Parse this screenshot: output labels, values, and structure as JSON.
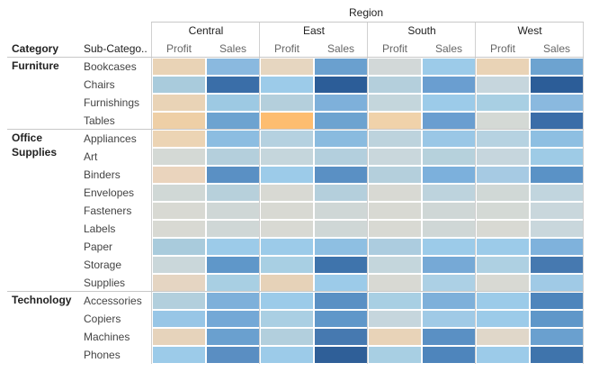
{
  "chart_data": {
    "type": "heatmap",
    "title": "Region",
    "row_headers": [
      "Category",
      "Sub-Catego.."
    ],
    "regions": [
      "Central",
      "East",
      "South",
      "West"
    ],
    "measures": [
      "Profit",
      "Sales"
    ],
    "categories": [
      {
        "name": "Furniture",
        "subcategories": [
          "Bookcases",
          "Chairs",
          "Furnishings",
          "Tables"
        ]
      },
      {
        "name": "Office\nSupplies",
        "subcategories": [
          "Appliances",
          "Art",
          "Binders",
          "Envelopes",
          "Fasteners",
          "Labels",
          "Paper",
          "Storage",
          "Supplies"
        ]
      },
      {
        "name": "Technology",
        "subcategories": [
          "Accessories",
          "Copiers",
          "Machines",
          "Phones"
        ]
      }
    ],
    "cell_colors": [
      [
        "#e9d3b6",
        "#8ab9df",
        "#e6d6c0",
        "#6aa0cf",
        "#d2d8d8",
        "#9ccbe9",
        "#e9d3b6",
        "#6da3d0"
      ],
      [
        "#a9cbdc",
        "#3a6ea8",
        "#9ccbe9",
        "#2c5d98",
        "#b4cfdc",
        "#6a9ed0",
        "#c6d6dd",
        "#2c5d98"
      ],
      [
        "#e9d3b6",
        "#9dc9e3",
        "#b4cfdc",
        "#7eb0da",
        "#c4d6dc",
        "#9ccbe9",
        "#a8cfe3",
        "#8ab9df"
      ],
      [
        "#eecfa6",
        "#6da3d0",
        "#fdbd70",
        "#6da3d0",
        "#f0d2aa",
        "#6a9ed0",
        "#d4d9d5",
        "#3b6da8"
      ],
      [
        "#ecd4b4",
        "#8cbde1",
        "#b5d1e0",
        "#8abbdf",
        "#bdd3dd",
        "#9ac7e6",
        "#b6d2e1",
        "#8ebfe2"
      ],
      [
        "#d4d9d5",
        "#b4cfdc",
        "#c5d6dc",
        "#b3cfdd",
        "#c9d7dc",
        "#b6d1dc",
        "#c6d6dd",
        "#9ecbe6"
      ],
      [
        "#ead4bd",
        "#5a90c4",
        "#9ccbe9",
        "#5a90c4",
        "#b4cfdc",
        "#7cb0dc",
        "#a6cae3",
        "#5a92c6"
      ],
      [
        "#d0d8d6",
        "#b7d0db",
        "#d8d9d3",
        "#b4cfdc",
        "#d8d9d3",
        "#bdd3dd",
        "#d0d8d6",
        "#c1d5de"
      ],
      [
        "#d8d9d3",
        "#cfd7d6",
        "#d8d9d3",
        "#cfd7d6",
        "#d8d9d3",
        "#cfd7d6",
        "#d4d9d5",
        "#c9d7dc"
      ],
      [
        "#d8d9d3",
        "#cfd7d6",
        "#d8d9d3",
        "#cfd7d6",
        "#d8d9d3",
        "#cfd7d6",
        "#d8d9d3",
        "#c9d7dc"
      ],
      [
        "#a9cbdc",
        "#9ccbe9",
        "#9ccbe9",
        "#8ebfe2",
        "#acccdf",
        "#9ccbe9",
        "#9ccbe9",
        "#7fb2dc"
      ],
      [
        "#cad7da",
        "#5f97c9",
        "#a8cfe3",
        "#3f74ac",
        "#c4d6dc",
        "#76a9d6",
        "#aed0e2",
        "#4679b0"
      ],
      [
        "#e5d5c2",
        "#a8cfe3",
        "#e6d2b8",
        "#9ccbe9",
        "#d8d9d3",
        "#acd0e5",
        "#d8d9d3",
        "#a0cae6"
      ],
      [
        "#b2cfdd",
        "#7eb0da",
        "#9ccbe9",
        "#5a90c4",
        "#a8cfe3",
        "#7eb0da",
        "#9ccbe9",
        "#4e85bc"
      ],
      [
        "#98c6e6",
        "#74a8d6",
        "#aacfe3",
        "#5f97c9",
        "#c6d6dd",
        "#a0cae6",
        "#9ccbe9",
        "#5f97c9"
      ],
      [
        "#e6d3bb",
        "#6aa0cf",
        "#b2cfdd",
        "#4679b0",
        "#e8d3b8",
        "#5a90c4",
        "#e0d7c9",
        "#6aa0cf"
      ],
      [
        "#9ccbe9",
        "#5a8ec2",
        "#9ccbe9",
        "#2f5f98",
        "#a8cfe3",
        "#4e85bc",
        "#9ccbe9",
        "#3f74ac"
      ]
    ]
  }
}
